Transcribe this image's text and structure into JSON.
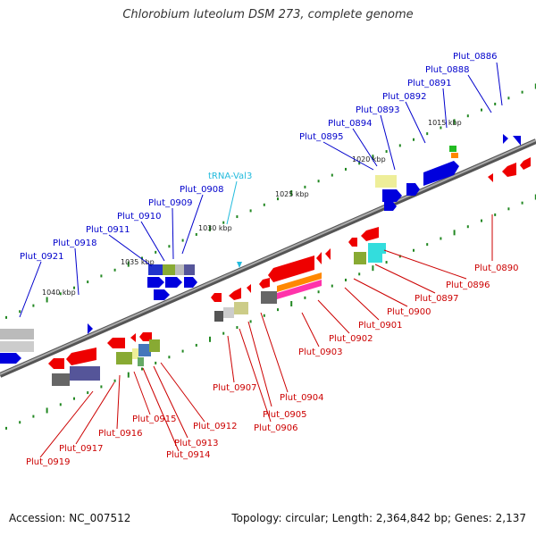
{
  "title": "Chlorobium luteolum DSM 273, complete genome",
  "footer": {
    "accession": "Accession: NC_007512",
    "summary": "Topology: circular; Length: 2,364,842 bp; Genes: 2,137"
  },
  "colors": {
    "forward_gene": "#0000dd",
    "reverse_gene": "#ee0000",
    "forward_label": "#0000cc",
    "reverse_label": "#cc0000",
    "trna_label": "#22bbdd",
    "backbone": "#777777",
    "tick": "#228822"
  },
  "scale_labels": [
    "1015 kbp",
    "1020 kbp",
    "1025 kbp",
    "1030 kbp",
    "1035 kbp",
    "1040 kbp"
  ],
  "forward_genes": [
    "Plut_0886",
    "Plut_0888",
    "Plut_0891",
    "Plut_0892",
    "Plut_0893",
    "Plut_0894",
    "Plut_0895",
    "Plut_0908",
    "Plut_0909",
    "Plut_0910",
    "Plut_0911",
    "Plut_0918",
    "Plut_0921"
  ],
  "trna": "tRNA-Val3",
  "reverse_genes": [
    "Plut_0890",
    "Plut_0896",
    "Plut_0897",
    "Plut_0900",
    "Plut_0901",
    "Plut_0902",
    "Plut_0903",
    "Plut_0904",
    "Plut_0905",
    "Plut_0906",
    "Plut_0907",
    "Plut_0912",
    "Plut_0913",
    "Plut_0914",
    "Plut_0915",
    "Plut_0916",
    "Plut_0917",
    "Plut_0919"
  ]
}
